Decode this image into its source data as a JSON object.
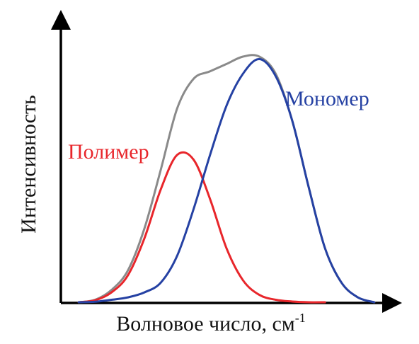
{
  "chart_data": {
    "type": "line",
    "title": "",
    "xlabel": "Волновое число, см",
    "xlabel_superscript": "-1",
    "ylabel": "Интенсивность",
    "grid": false,
    "legend": "none",
    "x_ticks": [],
    "y_ticks": [],
    "xlim": [
      0,
      100
    ],
    "ylim": [
      0,
      100
    ],
    "series": [
      {
        "name": "Полимер",
        "color": "#e8262b",
        "x": [
          5,
          10,
          15,
          20,
          25,
          30,
          35,
          40,
          45,
          50,
          55,
          60,
          65,
          70,
          75,
          80
        ],
        "y": [
          0,
          0.8,
          4,
          11,
          26,
          46,
          60,
          58,
          42,
          22,
          9,
          3,
          1,
          0.3,
          0,
          0
        ]
      },
      {
        "name": "Мономер",
        "color": "#2541a3",
        "x": [
          5,
          10,
          15,
          20,
          25,
          30,
          35,
          40,
          45,
          50,
          55,
          60,
          65,
          70,
          75,
          80,
          85,
          90,
          95
        ],
        "y": [
          0,
          0.2,
          1,
          2,
          4,
          8,
          19,
          38,
          60,
          80,
          93,
          99,
          92,
          74,
          47,
          22,
          8,
          2,
          0
        ]
      },
      {
        "name": "",
        "color": "#8a8a8a",
        "x": [
          5,
          10,
          15,
          20,
          25,
          30,
          35,
          40,
          45,
          50,
          55,
          60,
          65,
          70,
          75,
          80,
          85,
          90,
          95
        ],
        "y": [
          0,
          1,
          5,
          13,
          30,
          54,
          79,
          91,
          94,
          97,
          100,
          100,
          93,
          74,
          47,
          22,
          8,
          2,
          0
        ]
      }
    ],
    "annotations": [
      {
        "text": "Полимер",
        "color": "#e8262b"
      },
      {
        "text": "Мономер",
        "color": "#2541a3"
      }
    ]
  }
}
